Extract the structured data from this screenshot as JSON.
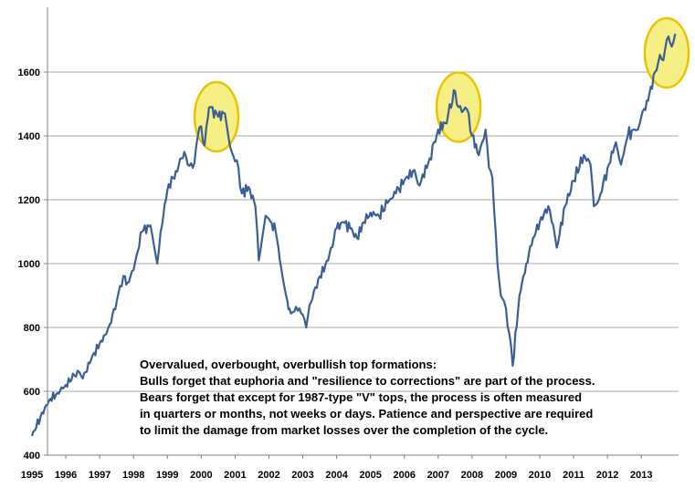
{
  "chart_data": {
    "type": "line",
    "title": "",
    "xlabel": "",
    "ylabel": "",
    "xlim": [
      1995,
      2014.1
    ],
    "ylim": [
      400,
      1750
    ],
    "grid": "horizontal",
    "y_ticks": [
      400,
      600,
      800,
      1000,
      1200,
      1400,
      1600
    ],
    "x_ticks": [
      "1995",
      "1996",
      "1997",
      "1998",
      "1999",
      "2000",
      "2001",
      "2002",
      "2003",
      "2004",
      "2005",
      "2006",
      "2007",
      "2008",
      "2009",
      "2010",
      "2011",
      "2012",
      "2013"
    ],
    "series": [
      {
        "name": "",
        "color": "#3b5f94",
        "x": [
          1995.0,
          1995.25,
          1995.5,
          1995.75,
          1996.0,
          1996.25,
          1996.4,
          1996.5,
          1996.75,
          1997.0,
          1997.2,
          1997.3,
          1997.5,
          1997.6,
          1997.75,
          1997.82,
          1998.0,
          1998.25,
          1998.5,
          1998.6,
          1998.7,
          1998.8,
          1999.0,
          1999.25,
          1999.5,
          1999.6,
          1999.75,
          1999.9,
          2000.0,
          2000.1,
          2000.2,
          2000.25,
          2000.5,
          2000.7,
          2000.8,
          2000.9,
          2001.0,
          2001.1,
          2001.2,
          2001.4,
          2001.6,
          2001.7,
          2001.8,
          2001.9,
          2002.0,
          2002.2,
          2002.4,
          2002.55,
          2002.6,
          2002.75,
          2002.9,
          2003.0,
          2003.1,
          2003.2,
          2003.5,
          2003.75,
          2004.0,
          2004.2,
          2004.4,
          2004.6,
          2004.8,
          2005.0,
          2005.25,
          2005.5,
          2005.75,
          2006.0,
          2006.25,
          2006.4,
          2006.5,
          2006.75,
          2007.0,
          2007.2,
          2007.3,
          2007.5,
          2007.6,
          2007.75,
          2007.9,
          2008.0,
          2008.2,
          2008.3,
          2008.4,
          2008.5,
          2008.6,
          2008.75,
          2008.85,
          2009.0,
          2009.1,
          2009.2,
          2009.4,
          2009.6,
          2009.8,
          2010.0,
          2010.25,
          2010.4,
          2010.5,
          2010.75,
          2011.0,
          2011.3,
          2011.5,
          2011.6,
          2011.75,
          2012.0,
          2012.25,
          2012.4,
          2012.6,
          2012.8,
          2012.9,
          2013.0,
          2013.2,
          2013.4,
          2013.5,
          2013.6,
          2013.75,
          2013.9,
          2014.0
        ],
        "values": [
          460,
          520,
          570,
          595,
          620,
          650,
          660,
          640,
          700,
          750,
          780,
          810,
          880,
          930,
          960,
          940,
          980,
          1100,
          1120,
          1060,
          1000,
          1100,
          1230,
          1290,
          1350,
          1310,
          1300,
          1400,
          1430,
          1370,
          1460,
          1490,
          1460,
          1470,
          1400,
          1350,
          1320,
          1300,
          1220,
          1240,
          1180,
          1010,
          1080,
          1150,
          1140,
          1100,
          960,
          880,
          860,
          850,
          860,
          840,
          800,
          870,
          960,
          1010,
          1110,
          1130,
          1110,
          1080,
          1130,
          1160,
          1150,
          1190,
          1220,
          1260,
          1290,
          1250,
          1260,
          1330,
          1420,
          1440,
          1470,
          1540,
          1490,
          1480,
          1470,
          1400,
          1340,
          1380,
          1420,
          1300,
          1270,
          1000,
          900,
          860,
          780,
          680,
          900,
          1000,
          1080,
          1130,
          1180,
          1120,
          1050,
          1180,
          1260,
          1340,
          1310,
          1180,
          1200,
          1300,
          1380,
          1310,
          1400,
          1420,
          1420,
          1460,
          1510,
          1600,
          1630,
          1640,
          1700,
          1680,
          1720
        ]
      }
    ],
    "highlights": [
      {
        "x": 2000.45,
        "y": 1460
      },
      {
        "x": 2007.6,
        "y": 1490
      },
      {
        "x": 2013.75,
        "y": 1660
      }
    ]
  },
  "annotation": {
    "lines": [
      "Overvalued, overbought, overbullish top formations:",
      "Bulls forget that euphoria and \"resilience to corrections\" are part of the process.",
      "Bears forget that except for 1987-type \"V\" tops, the process is often measured",
      "in quarters or months, not weeks or days. Patience and perspective are required",
      "to limit the damage from market losses over the completion of the cycle."
    ]
  },
  "colors": {
    "line": "#3b5f94",
    "highlight_fill": "#f5ef85",
    "highlight_stroke": "#e9c500",
    "grid": "#a9a9a9"
  }
}
